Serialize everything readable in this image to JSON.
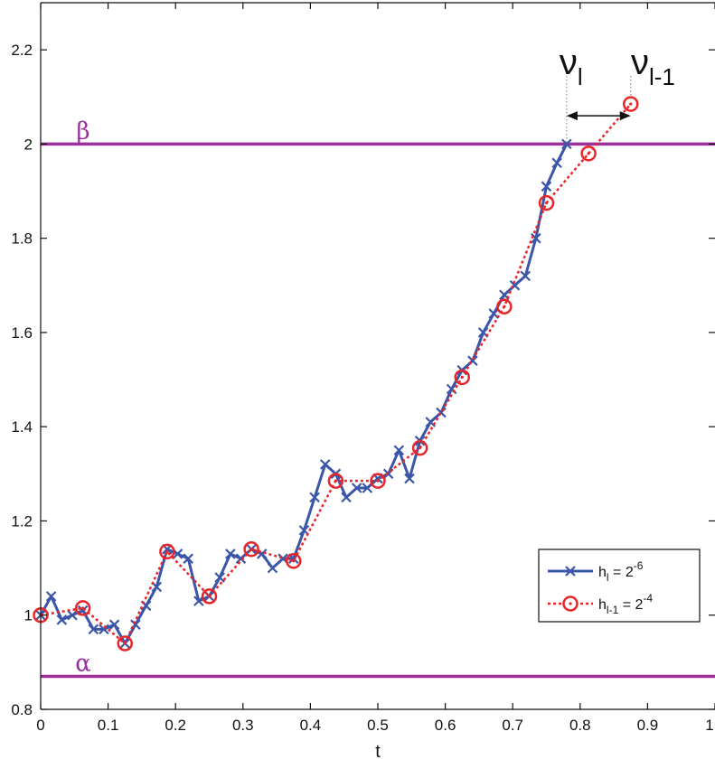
{
  "chart_data": {
    "type": "line",
    "xlabel": "t",
    "ylabel": "",
    "xlim": [
      0,
      1
    ],
    "ylim": [
      0.8,
      2.3
    ],
    "xticks": [
      "0",
      "0.1",
      "0.2",
      "0.3",
      "0.4",
      "0.5",
      "0.6",
      "0.7",
      "0.8",
      "0.9",
      "1"
    ],
    "yticks": [
      "0.8",
      "1",
      "1.2",
      "1.4",
      "1.6",
      "1.8",
      "2",
      "2.2"
    ],
    "grid": false,
    "legend_position": "lower-right",
    "reference_lines": [
      {
        "label": "β",
        "y": 2.0,
        "color": "#9b2f9b"
      },
      {
        "label": "α",
        "y": 0.87,
        "color": "#9b2f9b"
      }
    ],
    "annotation": {
      "left_label": "ν",
      "left_sub": "l",
      "right_label": "ν",
      "right_sub": "l-1",
      "from_x": 0.78,
      "to_x": 0.875,
      "y": 2.06
    },
    "series": [
      {
        "legend": {
          "base": "h",
          "sub": "l",
          "eq": " = 2",
          "sup": "-6"
        },
        "color": "#3b56a8",
        "style": "solid",
        "marker": "x",
        "x": [
          0,
          0.0156,
          0.0313,
          0.0469,
          0.0625,
          0.0781,
          0.0938,
          0.1094,
          0.125,
          0.1406,
          0.1563,
          0.1719,
          0.1875,
          0.2031,
          0.2188,
          0.2344,
          0.25,
          0.2656,
          0.2813,
          0.2969,
          0.3125,
          0.3281,
          0.3438,
          0.3594,
          0.375,
          0.3906,
          0.4063,
          0.4219,
          0.4375,
          0.4531,
          0.4688,
          0.4844,
          0.5,
          0.5156,
          0.5313,
          0.5469,
          0.5625,
          0.5781,
          0.5938,
          0.6094,
          0.625,
          0.6406,
          0.6563,
          0.6719,
          0.6875,
          0.7031,
          0.7188,
          0.7344,
          0.75,
          0.7656,
          0.78
        ],
        "y": [
          1.0,
          1.04,
          0.99,
          1.0,
          1.01,
          0.97,
          0.97,
          0.98,
          0.94,
          0.98,
          1.02,
          1.06,
          1.14,
          1.13,
          1.12,
          1.03,
          1.04,
          1.08,
          1.13,
          1.12,
          1.14,
          1.13,
          1.1,
          1.12,
          1.12,
          1.18,
          1.25,
          1.32,
          1.3,
          1.25,
          1.27,
          1.27,
          1.29,
          1.3,
          1.35,
          1.29,
          1.37,
          1.41,
          1.43,
          1.48,
          1.52,
          1.54,
          1.6,
          1.64,
          1.68,
          1.7,
          1.72,
          1.8,
          1.91,
          1.96,
          2.0
        ]
      },
      {
        "legend": {
          "base": "h",
          "sub": "l-1",
          "eq": " = 2",
          "sup": "-4"
        },
        "color": "#e8262a",
        "style": "dotted",
        "marker": "o",
        "x": [
          0,
          0.0625,
          0.125,
          0.1875,
          0.25,
          0.3125,
          0.375,
          0.4375,
          0.5,
          0.5625,
          0.625,
          0.6875,
          0.75,
          0.8125,
          0.875
        ],
        "y": [
          1.0,
          1.015,
          0.94,
          1.135,
          1.04,
          1.14,
          1.115,
          1.285,
          1.285,
          1.355,
          1.505,
          1.655,
          1.875,
          1.98,
          2.085
        ]
      }
    ]
  }
}
